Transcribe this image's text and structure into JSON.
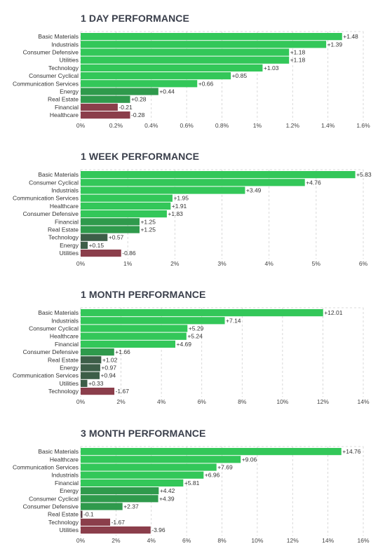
{
  "colors": {
    "pos_strong": "#33c759",
    "pos_mid": "#2f9a4c",
    "pos_weak": "#3d5e48",
    "neg_weak": "#5c3d46",
    "neg_strong": "#8b3e4b",
    "grid": "#cfcfcf",
    "title": "#3a3f4b"
  },
  "chart_data": [
    {
      "type": "bar",
      "orientation": "horizontal",
      "title": "1 DAY PERFORMANCE",
      "categories": [
        "Basic Materials",
        "Industrials",
        "Consumer Defensive",
        "Utilities",
        "Technology",
        "Consumer Cyclical",
        "Communication Services",
        "Energy",
        "Real Estate",
        "Financial",
        "Healthcare"
      ],
      "values": [
        1.48,
        1.39,
        1.18,
        1.18,
        1.03,
        0.85,
        0.66,
        0.44,
        0.28,
        -0.21,
        -0.28
      ],
      "value_labels": [
        "+1.48",
        "+1.39",
        "+1.18",
        "+1.18",
        "+1.03",
        "+0.85",
        "+0.66",
        "+0.44",
        "+0.28",
        "-0.21",
        "-0.28"
      ],
      "xlim": [
        0,
        1.6
      ],
      "xticks": [
        "0%",
        "0.2%",
        "0.4%",
        "0.6%",
        "0.8%",
        "1%",
        "1.2%",
        "1.4%",
        "1.6%"
      ],
      "grid": true
    },
    {
      "type": "bar",
      "orientation": "horizontal",
      "title": "1 WEEK PERFORMANCE",
      "categories": [
        "Basic Materials",
        "Consumer Cyclical",
        "Industrials",
        "Communication Services",
        "Healthcare",
        "Consumer Defensive",
        "Financial",
        "Real Estate",
        "Technology",
        "Energy",
        "Utilities"
      ],
      "values": [
        5.83,
        4.76,
        3.49,
        1.95,
        1.91,
        1.83,
        1.25,
        1.25,
        0.57,
        0.15,
        -0.86
      ],
      "value_labels": [
        "+5.83",
        "+4.76",
        "+3.49",
        "+1.95",
        "+1.91",
        "+1.83",
        "+1.25",
        "+1.25",
        "+0.57",
        "+0.15",
        "-0.86"
      ],
      "xlim": [
        0,
        6
      ],
      "xticks": [
        "0%",
        "1%",
        "2%",
        "3%",
        "4%",
        "5%",
        "6%"
      ],
      "grid": true
    },
    {
      "type": "bar",
      "orientation": "horizontal",
      "title": "1 MONTH PERFORMANCE",
      "categories": [
        "Basic Materials",
        "Industrials",
        "Consumer Cyclical",
        "Healthcare",
        "Financial",
        "Consumer Defensive",
        "Real Estate",
        "Energy",
        "Communication Services",
        "Utilities",
        "Technology"
      ],
      "values": [
        12.01,
        7.14,
        5.29,
        5.24,
        4.69,
        1.66,
        1.02,
        0.97,
        0.94,
        0.33,
        -1.67
      ],
      "value_labels": [
        "+12.01",
        "+7.14",
        "+5.29",
        "+5.24",
        "+4.69",
        "+1.66",
        "+1.02",
        "+0.97",
        "+0.94",
        "+0.33",
        "-1.67"
      ],
      "xlim": [
        0,
        14
      ],
      "xticks": [
        "0%",
        "2%",
        "4%",
        "6%",
        "8%",
        "10%",
        "12%",
        "14%"
      ],
      "grid": true
    },
    {
      "type": "bar",
      "orientation": "horizontal",
      "title": "3 MONTH PERFORMANCE",
      "categories": [
        "Basic Materials",
        "Healthcare",
        "Communication Services",
        "Industrials",
        "Financial",
        "Energy",
        "Consumer Cyclical",
        "Consumer Defensive",
        "Real Estate",
        "Technology",
        "Utilities"
      ],
      "values": [
        14.76,
        9.06,
        7.69,
        6.96,
        5.81,
        4.42,
        4.39,
        2.37,
        -0.1,
        -1.67,
        -3.96
      ],
      "value_labels": [
        "+14.76",
        "+9.06",
        "+7.69",
        "+6.96",
        "+5.81",
        "+4.42",
        "+4.39",
        "+2.37",
        "-0.1",
        "-1.67",
        "-3.96"
      ],
      "xlim": [
        0,
        16
      ],
      "xticks": [
        "0%",
        "2%",
        "4%",
        "6%",
        "8%",
        "10%",
        "12%",
        "14%",
        "16%"
      ],
      "grid": true
    }
  ]
}
